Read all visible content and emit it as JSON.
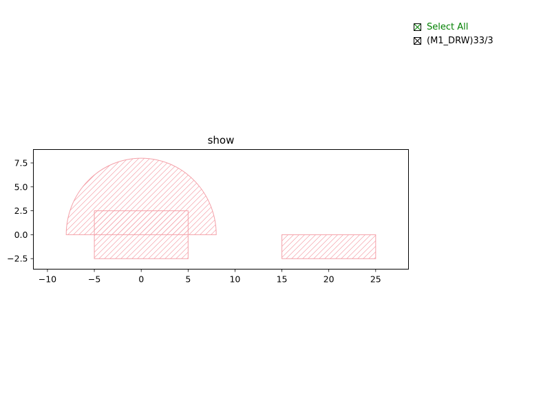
{
  "colors": {
    "shape_stroke": "#f4a0a8",
    "select_all": "#008000",
    "legend_text": "#000000"
  },
  "legend": {
    "items": [
      {
        "label": "Select All",
        "checked": true,
        "color": "#008000"
      },
      {
        "label": "(M1_DRW)33/3",
        "checked": true,
        "color": "#000000"
      }
    ]
  },
  "chart_data": {
    "type": "area",
    "title": "show",
    "xlabel": "",
    "ylabel": "",
    "xlim": [
      -11.5,
      28.5
    ],
    "ylim": [
      -3.6,
      8.9
    ],
    "xticks": [
      -10,
      -5,
      0,
      5,
      10,
      15,
      20,
      25
    ],
    "xtick_labels": [
      "−10",
      "−5",
      "0",
      "5",
      "10",
      "15",
      "20",
      "25"
    ],
    "yticks": [
      -2.5,
      0.0,
      2.5,
      5.0,
      7.5
    ],
    "ytick_labels": [
      "−2.5",
      "0.0",
      "2.5",
      "5.0",
      "7.5"
    ],
    "grid": false,
    "hatch": "diagonal",
    "shapes": [
      {
        "kind": "half-disc",
        "center": [
          0,
          0
        ],
        "radius": 8
      },
      {
        "kind": "rectangle",
        "x": [
          -5,
          5
        ],
        "y": [
          -2.5,
          2.5
        ]
      },
      {
        "kind": "rectangle",
        "x": [
          15,
          25
        ],
        "y": [
          -2.5,
          0
        ]
      }
    ]
  }
}
